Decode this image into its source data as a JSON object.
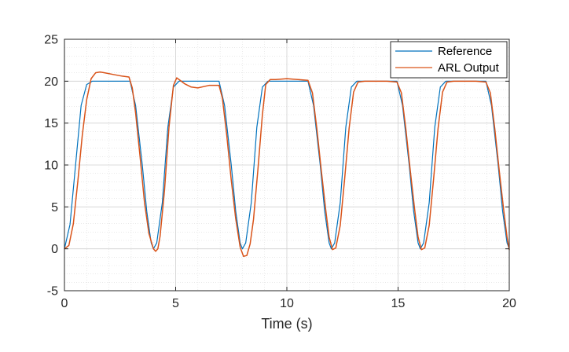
{
  "chart_data": {
    "type": "line",
    "title": "",
    "xlabel": "Time (s)",
    "ylabel": "",
    "xlim": [
      0,
      20
    ],
    "ylim": [
      -5,
      25
    ],
    "xticks": [
      0,
      5,
      10,
      15,
      20
    ],
    "yticks": [
      -5,
      0,
      5,
      10,
      15,
      20,
      25
    ],
    "xtick_labels": [
      "0",
      "5",
      "10",
      "15",
      "20"
    ],
    "ytick_labels": [
      "-5",
      "0",
      "5",
      "10",
      "15",
      "20",
      "25"
    ],
    "grid": true,
    "minor_grid": true,
    "legend_position": "top-right",
    "series": [
      {
        "name": "Reference",
        "color": "#0072BD",
        "x": [
          0,
          0.25,
          0.5,
          0.75,
          1.0,
          1.25,
          1.5,
          2.0,
          2.5,
          2.95,
          3.2,
          3.5,
          3.7,
          3.9,
          4.0,
          4.15,
          4.4,
          4.65,
          4.9,
          5.15,
          5.5,
          6.0,
          6.5,
          6.95,
          7.2,
          7.5,
          7.7,
          7.9,
          8.0,
          8.15,
          8.4,
          8.65,
          8.9,
          9.15,
          9.5,
          10.0,
          10.5,
          10.95,
          11.2,
          11.5,
          11.7,
          11.9,
          12.0,
          12.15,
          12.4,
          12.65,
          12.9,
          13.15,
          13.5,
          14.0,
          14.5,
          14.95,
          15.2,
          15.5,
          15.7,
          15.9,
          16.0,
          16.15,
          16.4,
          16.65,
          16.9,
          17.15,
          17.5,
          18.0,
          18.5,
          18.95,
          19.2,
          19.5,
          19.7,
          19.9,
          20.0
        ],
        "y": [
          0,
          2.9,
          10,
          17.1,
          19.6,
          20,
          20,
          20,
          20,
          20,
          17.1,
          10,
          4.5,
          0.7,
          0,
          0.7,
          5.5,
          14.5,
          19.3,
          20,
          20,
          20,
          20,
          20,
          17.1,
          10,
          4.5,
          0.7,
          0,
          0.7,
          5.5,
          14.5,
          19.3,
          20,
          20,
          20,
          20,
          20,
          17.1,
          10,
          4.5,
          0.7,
          0,
          0.7,
          5.5,
          14.5,
          19.3,
          20,
          20,
          20,
          20,
          20,
          17.1,
          10,
          4.5,
          0.7,
          0,
          0.7,
          5.5,
          14.5,
          19.3,
          20,
          20,
          20,
          20,
          20,
          17.1,
          10,
          4.5,
          0.7,
          0
        ]
      },
      {
        "name": "ARL Output",
        "color": "#D95319",
        "x": [
          0,
          0.2,
          0.4,
          0.6,
          0.8,
          1.0,
          1.2,
          1.4,
          1.6,
          1.8,
          2.2,
          2.6,
          2.9,
          3.05,
          3.2,
          3.4,
          3.6,
          3.8,
          4.0,
          4.1,
          4.2,
          4.3,
          4.5,
          4.7,
          4.9,
          5.05,
          5.2,
          5.4,
          5.7,
          6.0,
          6.5,
          6.95,
          7.1,
          7.3,
          7.5,
          7.7,
          7.9,
          8.05,
          8.2,
          8.35,
          8.5,
          8.7,
          8.9,
          9.05,
          9.25,
          9.5,
          10.0,
          10.5,
          10.95,
          11.15,
          11.35,
          11.55,
          11.75,
          11.9,
          12.05,
          12.2,
          12.4,
          12.6,
          12.8,
          13.0,
          13.2,
          13.5,
          14.0,
          14.5,
          14.95,
          15.15,
          15.35,
          15.55,
          15.75,
          15.9,
          16.05,
          16.2,
          16.4,
          16.6,
          16.8,
          17.0,
          17.2,
          17.5,
          18.0,
          18.5,
          18.95,
          19.15,
          19.35,
          19.55,
          19.75,
          19.9,
          20.0
        ],
        "y": [
          0,
          0.4,
          3,
          8,
          13.5,
          17.8,
          20.3,
          21.0,
          21.1,
          21.0,
          20.8,
          20.6,
          20.5,
          19.2,
          16.2,
          11,
          5.5,
          1.8,
          0,
          -0.3,
          0,
          1.5,
          7,
          14.5,
          19.5,
          20.4,
          20.1,
          19.7,
          19.3,
          19.2,
          19.5,
          19.5,
          18.0,
          13.5,
          8.2,
          3.6,
          0.2,
          -0.9,
          -0.8,
          0.6,
          3.5,
          9.5,
          16,
          19.6,
          20.2,
          20.2,
          20.3,
          20.2,
          20.1,
          18.6,
          14.3,
          9.3,
          4.6,
          1.4,
          -0.1,
          0.1,
          2.8,
          8.4,
          14.4,
          18.7,
          19.9,
          20.0,
          20.0,
          20.0,
          19.9,
          18.6,
          14.3,
          9.3,
          4.6,
          1.4,
          -0.1,
          0.1,
          2.8,
          8.4,
          14.4,
          18.7,
          19.9,
          20.0,
          20.0,
          20.0,
          19.9,
          18.6,
          14.3,
          9.3,
          4.6,
          1.4,
          -0.1
        ]
      }
    ]
  }
}
